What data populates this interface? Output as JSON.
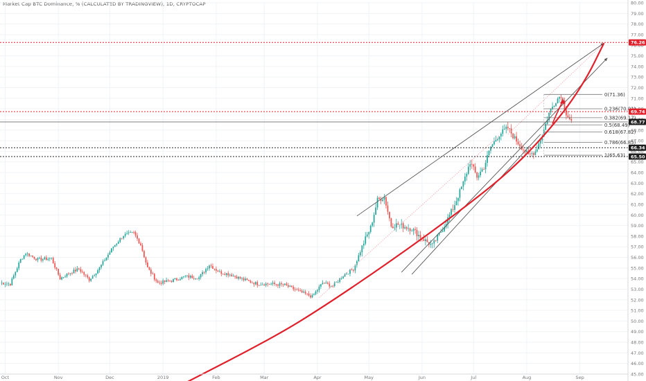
{
  "title": "Market Cap BTC Dominance, % (CALCULATED BY TRADINGVIEW), 1D, CRYPTOCAP",
  "chart_data": {
    "type": "candlestick",
    "y_range": [
      45,
      80
    ],
    "y_ticks": [
      80.0,
      79.0,
      78.0,
      77.0,
      76.0,
      75.0,
      74.0,
      73.0,
      72.0,
      71.0,
      70.0,
      69.0,
      68.0,
      67.0,
      66.0,
      65.0,
      64.0,
      63.0,
      62.0,
      61.0,
      60.0,
      59.0,
      58.0,
      57.0,
      56.0,
      55.0,
      54.0,
      53.0,
      52.0,
      51.0,
      50.0,
      49.0,
      48.0,
      47.0,
      46.0,
      45.0
    ],
    "x_range_days": [
      0,
      366
    ],
    "x_labels": [
      {
        "label": "Oct",
        "day": 3
      },
      {
        "label": "Nov",
        "day": 34
      },
      {
        "label": "Dec",
        "day": 64
      },
      {
        "label": "2019",
        "day": 95
      },
      {
        "label": "Feb",
        "day": 126
      },
      {
        "label": "Mar",
        "day": 154
      },
      {
        "label": "Apr",
        "day": 185
      },
      {
        "label": "May",
        "day": 215
      },
      {
        "label": "Jun",
        "day": 246
      },
      {
        "label": "Jul",
        "day": 276
      },
      {
        "label": "Aug",
        "day": 307
      },
      {
        "label": "Sep",
        "day": 338
      }
    ],
    "anchors": [
      [
        0,
        53.6
      ],
      [
        6,
        53.5
      ],
      [
        12,
        55.8
      ],
      [
        15,
        56.4
      ],
      [
        22,
        55.8
      ],
      [
        30,
        55.9
      ],
      [
        35,
        54.0
      ],
      [
        40,
        54.5
      ],
      [
        46,
        54.9
      ],
      [
        52,
        53.9
      ],
      [
        58,
        55.0
      ],
      [
        66,
        57.0
      ],
      [
        72,
        58.1
      ],
      [
        78,
        58.3
      ],
      [
        82,
        57.2
      ],
      [
        86,
        55.0
      ],
      [
        92,
        53.6
      ],
      [
        100,
        53.8
      ],
      [
        108,
        54.2
      ],
      [
        116,
        54.1
      ],
      [
        122,
        55.3
      ],
      [
        128,
        54.6
      ],
      [
        134,
        54.4
      ],
      [
        142,
        53.9
      ],
      [
        150,
        53.5
      ],
      [
        158,
        53.5
      ],
      [
        166,
        53.4
      ],
      [
        174,
        52.8
      ],
      [
        182,
        52.3
      ],
      [
        188,
        53.6
      ],
      [
        194,
        53.3
      ],
      [
        200,
        54.3
      ],
      [
        206,
        54.9
      ],
      [
        212,
        57.4
      ],
      [
        216,
        58.8
      ],
      [
        220,
        61.4
      ],
      [
        224,
        61.7
      ],
      [
        228,
        59.0
      ],
      [
        232,
        59.1
      ],
      [
        240,
        58.7
      ],
      [
        246,
        57.8
      ],
      [
        252,
        57.1
      ],
      [
        258,
        58.7
      ],
      [
        264,
        60.6
      ],
      [
        270,
        63.0
      ],
      [
        274,
        65.0
      ],
      [
        278,
        63.6
      ],
      [
        282,
        64.5
      ],
      [
        286,
        66.4
      ],
      [
        291,
        67.6
      ],
      [
        296,
        68.2
      ],
      [
        300,
        67.2
      ],
      [
        304,
        66.4
      ],
      [
        308,
        65.6
      ],
      [
        312,
        66.0
      ],
      [
        316,
        67.5
      ],
      [
        320,
        69.6
      ],
      [
        324,
        70.8
      ],
      [
        327,
        71.3
      ],
      [
        330,
        69.6
      ],
      [
        333,
        68.8
      ]
    ],
    "horizontal_levels": [
      {
        "value": 76.26,
        "label": "76.26",
        "style": "red-dotted"
      },
      {
        "value": 69.74,
        "label": "69.74",
        "style": "red-dotted"
      },
      {
        "value": 68.77,
        "label": "68.77",
        "style": "black-solid"
      },
      {
        "value": 66.34,
        "label": "66.34",
        "style": "black-dotted"
      },
      {
        "value": 65.5,
        "label": "65.50",
        "style": "black-dotted"
      }
    ],
    "fib_levels": [
      {
        "ratio": "0",
        "value": 71.36,
        "text": "0(71.36)"
      },
      {
        "ratio": "0.236",
        "value": 70.01,
        "text": "0.236(70.01)"
      },
      {
        "ratio": "0.382",
        "value": 69.17,
        "text": "0.382(69.17)"
      },
      {
        "ratio": "0.5",
        "value": 68.49,
        "text": "0.5(68.49)"
      },
      {
        "ratio": "0.618",
        "value": 67.82,
        "text": "0.618(67.82)"
      },
      {
        "ratio": "0.786",
        "value": 66.85,
        "text": "0.786(66.85)"
      },
      {
        "ratio": "1",
        "value": 65.63,
        "text": "1(65.63)"
      }
    ],
    "trendlines": [
      {
        "kind": "upper-wedge",
        "from": [
          208,
          59.9
        ],
        "to": [
          352,
          76.2
        ]
      },
      {
        "kind": "lower-wedge",
        "from": [
          234,
          54.6
        ],
        "to": [
          354,
          74.8
        ]
      },
      {
        "kind": "forecast-channel",
        "from": [
          240,
          54.4
        ],
        "to": [
          315,
          67.6
        ]
      }
    ],
    "red_curve": [
      [
        106,
        44.0
      ],
      [
        160,
        48.5
      ],
      [
        190,
        51.5
      ],
      [
        230,
        55.9
      ],
      [
        270,
        60.6
      ],
      [
        300,
        64.5
      ],
      [
        325,
        68.9
      ],
      [
        341,
        72.6
      ],
      [
        352,
        76.2
      ]
    ],
    "red_arrow": [
      [
        322,
        68.6
      ],
      [
        325,
        69.8
      ],
      [
        328,
        70.7
      ]
    ],
    "pink_guides": [
      {
        "from": [
          186,
          52.2
        ],
        "to": [
          291,
          67.5
        ]
      },
      {
        "from": [
          296,
          67.6
        ],
        "to": [
          352,
          76.2
        ]
      }
    ],
    "colors": {
      "up": "#26a69a",
      "down": "#ef5350",
      "red_line": "#e0202a",
      "trend": "#555555"
    }
  }
}
